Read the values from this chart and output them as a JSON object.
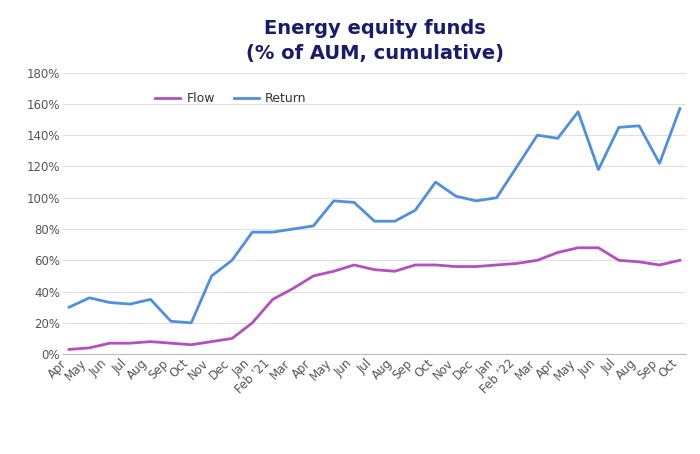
{
  "title": "Energy equity funds\n(% of AUM, cumulative)",
  "labels": [
    "Apr",
    "May",
    "Jun",
    "Jul",
    "Aug",
    "Sep",
    "Oct",
    "Nov",
    "Dec",
    "Jan",
    "Feb '21",
    "Mar",
    "Apr",
    "May",
    "Jun",
    "Jul",
    "Aug",
    "Sep",
    "Oct",
    "Nov",
    "Dec",
    "Jan",
    "Feb '22",
    "Mar",
    "Apr",
    "May",
    "Jun",
    "Jul",
    "Aug",
    "Sep",
    "Oct"
  ],
  "flow": [
    3,
    4,
    7,
    7,
    8,
    7,
    6,
    8,
    10,
    20,
    35,
    42,
    50,
    53,
    57,
    54,
    53,
    57,
    57,
    56,
    56,
    57,
    58,
    60,
    65,
    68,
    68,
    60,
    59,
    57,
    60
  ],
  "return_data": [
    30,
    36,
    33,
    32,
    35,
    21,
    20,
    50,
    60,
    78,
    78,
    80,
    82,
    98,
    97,
    85,
    85,
    92,
    110,
    101,
    98,
    100,
    120,
    140,
    138,
    155,
    118,
    145,
    146,
    122,
    157
  ],
  "flow_color": "#b44fbf",
  "return_color": "#4f8fdf",
  "title_color": "#1a1a6e",
  "ylim": [
    0,
    180
  ],
  "yticks": [
    0,
    20,
    40,
    60,
    80,
    100,
    120,
    140,
    160,
    180
  ],
  "background_color": "#ffffff",
  "legend_flow": "Flow",
  "legend_return": "Return",
  "title_fontsize": 14,
  "tick_fontsize": 8.5,
  "legend_fontsize": 9,
  "line_width": 2.0
}
